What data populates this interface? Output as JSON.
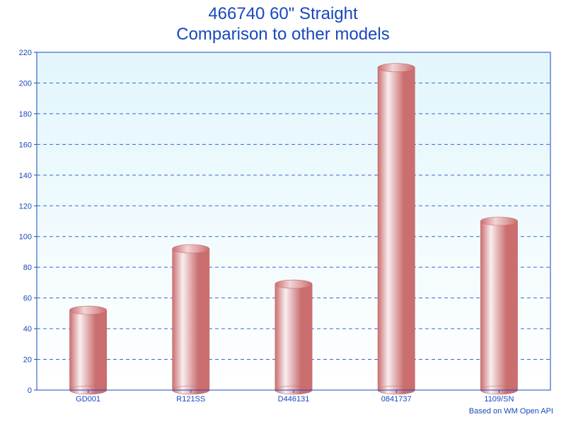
{
  "title": {
    "line1": "466740 60\" Straight",
    "line2": "Comparison to other models",
    "color": "#1848bd",
    "fontsize": 24
  },
  "chart": {
    "type": "bar",
    "categories": [
      "GD001",
      "R121SS",
      "D446131",
      "0841737",
      "1109/SN"
    ],
    "values": [
      52,
      92,
      69,
      210,
      110
    ],
    "bar_fill_light": "#f9eef0",
    "bar_fill_dark": "#ca6e6f",
    "bar_border": "#c86b6c",
    "plot_bg_top": "#e2f6fc",
    "plot_bg_bottom": "#ffffff",
    "grid_color": "#3a66d0",
    "axis_color": "#1848bd",
    "ylim": [
      0,
      220
    ],
    "ytick_step": 20,
    "label_color": "#1848bd",
    "label_fontsize": 11,
    "bar_width_ratio": 0.36
  },
  "attribution": "Based on WM Open API"
}
